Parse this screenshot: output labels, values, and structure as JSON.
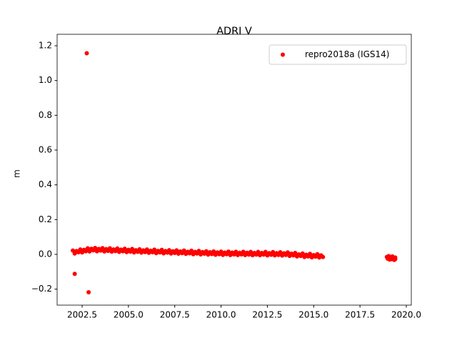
{
  "chart_data": {
    "type": "scatter",
    "title": "ADRI V",
    "y_label": "m",
    "x": [
      2002.0,
      2002.1,
      2002.2,
      2002.3,
      2002.4,
      2002.5,
      2002.6,
      2002.7,
      2002.8,
      2002.9,
      2003.0,
      2003.1,
      2003.2,
      2003.3,
      2003.4,
      2003.5,
      2003.6,
      2003.7,
      2003.8,
      2003.9,
      2004.0,
      2004.1,
      2004.2,
      2004.3,
      2004.4,
      2004.5,
      2004.6,
      2004.7,
      2004.8,
      2004.9,
      2005.0,
      2005.1,
      2005.2,
      2005.3,
      2005.4,
      2005.5,
      2005.6,
      2005.7,
      2005.8,
      2005.9,
      2006.0,
      2006.1,
      2006.2,
      2006.3,
      2006.4,
      2006.5,
      2006.6,
      2006.7,
      2006.8,
      2006.9,
      2007.0,
      2007.1,
      2007.2,
      2007.3,
      2007.4,
      2007.5,
      2007.6,
      2007.7,
      2007.8,
      2007.9,
      2008.0,
      2008.1,
      2008.2,
      2008.3,
      2008.4,
      2008.5,
      2008.6,
      2008.7,
      2008.8,
      2008.9,
      2009.0,
      2009.1,
      2009.2,
      2009.3,
      2009.4,
      2009.5,
      2009.6,
      2009.7,
      2009.8,
      2009.9,
      2010.0,
      2010.1,
      2010.2,
      2010.3,
      2010.4,
      2010.5,
      2010.6,
      2010.7,
      2010.8,
      2010.9,
      2011.0,
      2011.1,
      2011.2,
      2011.3,
      2011.4,
      2011.5,
      2011.6,
      2011.7,
      2011.8,
      2011.9,
      2012.0,
      2012.1,
      2012.2,
      2012.3,
      2012.4,
      2012.5,
      2012.6,
      2012.7,
      2012.8,
      2012.9,
      2013.0,
      2013.1,
      2013.2,
      2013.3,
      2013.4,
      2013.5,
      2013.6,
      2013.7,
      2013.8,
      2013.9,
      2014.0,
      2014.1,
      2014.2,
      2014.3,
      2014.4,
      2014.5,
      2014.6,
      2014.7,
      2014.8,
      2014.9,
      2015.0,
      2015.1,
      2015.2,
      2015.3,
      2015.4,
      2015.5,
      2018.95,
      2019.0,
      2019.05,
      2019.1,
      2019.15,
      2019.2,
      2019.25,
      2019.3,
      2019.35,
      2019.4,
      2019.4,
      2002.75,
      2002.1,
      2002.85
    ],
    "series": [
      {
        "name": "repro2018a (IGS14)",
        "color": "#ff0000",
        "values": [
          0.022,
          0.005,
          0.019,
          0.012,
          0.028,
          0.011,
          0.026,
          0.018,
          0.035,
          0.017,
          0.032,
          0.023,
          0.037,
          0.018,
          0.031,
          0.022,
          0.036,
          0.017,
          0.03,
          0.02,
          0.035,
          0.016,
          0.028,
          0.019,
          0.034,
          0.014,
          0.027,
          0.018,
          0.032,
          0.013,
          0.026,
          0.016,
          0.031,
          0.011,
          0.024,
          0.015,
          0.029,
          0.01,
          0.023,
          0.013,
          0.028,
          0.009,
          0.021,
          0.012,
          0.027,
          0.007,
          0.02,
          0.011,
          0.026,
          0.006,
          0.019,
          0.01,
          0.024,
          0.005,
          0.018,
          0.008,
          0.023,
          0.004,
          0.017,
          0.007,
          0.022,
          0.003,
          0.015,
          0.006,
          0.021,
          0.001,
          0.014,
          0.005,
          0.02,
          0.0,
          0.013,
          0.004,
          0.018,
          -0.001,
          0.012,
          0.002,
          0.017,
          -0.002,
          0.011,
          0.001,
          0.016,
          -0.003,
          0.01,
          0.001,
          0.016,
          -0.004,
          0.01,
          0.0,
          0.015,
          -0.004,
          0.009,
          0.0,
          0.015,
          -0.004,
          0.009,
          -0.001,
          0.014,
          -0.005,
          0.008,
          -0.001,
          0.014,
          -0.005,
          0.008,
          -0.001,
          0.014,
          -0.006,
          0.007,
          -0.002,
          0.013,
          -0.006,
          0.007,
          -0.003,
          0.012,
          -0.007,
          0.006,
          -0.003,
          0.011,
          -0.009,
          0.004,
          -0.006,
          0.008,
          -0.012,
          0.0,
          -0.009,
          0.005,
          -0.015,
          -0.002,
          -0.012,
          0.003,
          -0.017,
          -0.004,
          -0.013,
          0.001,
          -0.018,
          -0.006,
          -0.015,
          -0.015,
          -0.025,
          -0.01,
          -0.03,
          -0.018,
          -0.028,
          -0.012,
          -0.022,
          -0.032,
          -0.018,
          -0.028,
          1.157,
          -0.112,
          -0.218
        ]
      }
    ],
    "xlim": [
      2001.15,
      2020.27
    ],
    "ylim": [
      -0.292,
      1.266
    ],
    "xticks": [
      2002.5,
      {
        "value": 2005,
        "label": "2005.0"
      },
      2007.5,
      {
        "value": 2010,
        "label": "2010.0"
      },
      2012.5,
      {
        "value": 2015,
        "label": "2015.0"
      },
      2017.5,
      {
        "value": 2020,
        "label": "2020.0"
      }
    ],
    "yticks": [
      {
        "value": -0.2,
        "label": "−0.2"
      },
      {
        "value": 0,
        "label": "0.0"
      },
      0.2,
      0.4,
      0.6,
      0.8,
      {
        "value": 1,
        "label": "1.0"
      },
      1.2
    ],
    "legend": "upper right",
    "grid": false
  }
}
